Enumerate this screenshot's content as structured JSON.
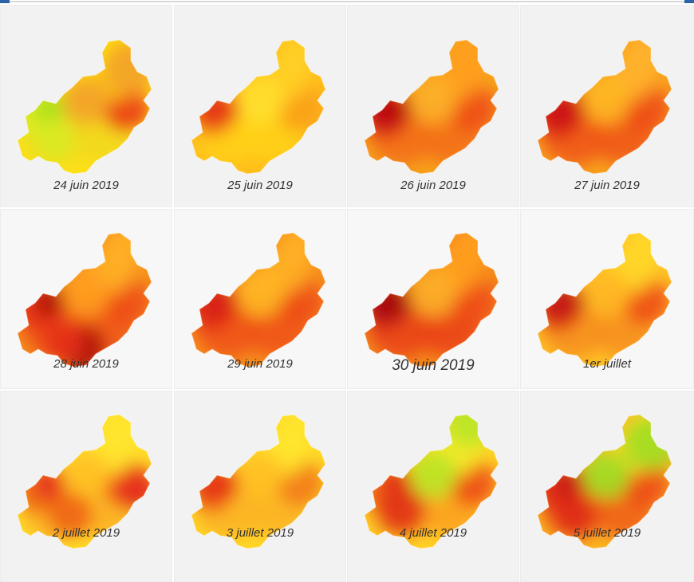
{
  "maps": [
    {
      "caption": "24 juin 2019",
      "palette": [
        "#fde018",
        "#f2d81f",
        "#d8eb24",
        "#a8e11b",
        "#ffd400",
        "#f3a12a",
        "#ec3b18"
      ],
      "highlight": "cool-northeast"
    },
    {
      "caption": "25 juin 2019",
      "palette": [
        "#ffbd1c",
        "#ffd018",
        "#fda61c",
        "#e6361a",
        "#ffcf26",
        "#ffe02c",
        "#f9a01a"
      ],
      "highlight": "hot-west"
    },
    {
      "caption": "26 juin 2019",
      "palette": [
        "#f7a21c",
        "#f36e16",
        "#e4301b",
        "#bb0d12",
        "#ff9f1f",
        "#fcb02a",
        "#ee4d17"
      ],
      "highlight": "hot-west"
    },
    {
      "caption": "27 juin 2019",
      "palette": [
        "#f8a11e",
        "#f05617",
        "#df2a18",
        "#cc1713",
        "#ffb22b",
        "#ffb823",
        "#ee4d17"
      ],
      "highlight": "hot-west"
    },
    {
      "caption": "28 juin 2019",
      "palette": [
        "#f6911d",
        "#f05617",
        "#e73219",
        "#b00e11",
        "#ffb026",
        "#ff9f1f",
        "#ee4d17"
      ],
      "highlight": "hot-south"
    },
    {
      "caption": "29 juin 2019",
      "palette": [
        "#f7901d",
        "#ef5317",
        "#e73219",
        "#d8251a",
        "#ffb026",
        "#ffb823",
        "#ee4d17"
      ],
      "highlight": "hot-west"
    },
    {
      "caption": "30 juin 2019",
      "palette": [
        "#f58a1b",
        "#ea4417",
        "#e0301a",
        "#a90d12",
        "#ff9f1f",
        "#fcb02a",
        "#ee4d17"
      ],
      "highlight": "hot-west"
    },
    {
      "caption": "1er juillet",
      "palette": [
        "#ffc226",
        "#f68f1d",
        "#ea4417",
        "#c51a14",
        "#ffd728",
        "#ffb823",
        "#ee4d17"
      ],
      "highlight": "hot-west"
    },
    {
      "caption": "2 juillet 2019",
      "palette": [
        "#ffdd2a",
        "#fbb022",
        "#f06418",
        "#e4301b",
        "#ffe62e",
        "#ffc023",
        "#ee4d17"
      ],
      "highlight": "hot-east"
    },
    {
      "caption": "3 juillet 2019",
      "palette": [
        "#ffd827",
        "#fcb423",
        "#f3781a",
        "#e6381a",
        "#ffe62e",
        "#ffc023",
        "#f27a19"
      ],
      "highlight": "hot-west"
    },
    {
      "caption": "4 juillet 2019",
      "palette": [
        "#ffd327",
        "#fca21f",
        "#f05e18",
        "#e03019",
        "#f4ec2a",
        "#b9e526",
        "#ee4d17"
      ],
      "highlight": "cool-north"
    },
    {
      "caption": "5 juillet 2019",
      "palette": [
        "#fbb823",
        "#f0601a",
        "#df2a18",
        "#c51a14",
        "#ffd827",
        "#9fdf24",
        "#ee4d17"
      ],
      "highlight": "cool-northeast"
    }
  ]
}
